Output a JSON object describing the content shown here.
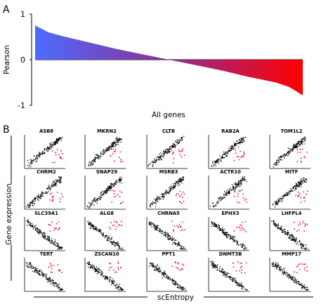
{
  "chart_data": [
    {
      "panel": "A",
      "type": "area",
      "ylabel": "Pearson",
      "xlabel": "All genes",
      "yticks": [
        "1",
        "0",
        "-1"
      ],
      "ylim": [
        -1,
        1
      ],
      "x": [
        0,
        0.05,
        0.1,
        0.2,
        0.3,
        0.4,
        0.5,
        0.6,
        0.7,
        0.8,
        0.9,
        0.95,
        1
      ],
      "values": [
        0.75,
        0.6,
        0.52,
        0.38,
        0.24,
        0.12,
        0.0,
        -0.12,
        -0.24,
        -0.38,
        -0.5,
        -0.6,
        -0.78
      ],
      "colors": {
        "start": "#4d6bff",
        "mid": "#8e2f94",
        "end": "#ff0000"
      },
      "grid": false
    },
    {
      "panel": "B",
      "type": "scatter",
      "xlabel": "scEntropy",
      "ylabel": "Gene expression",
      "colors": {
        "main": "#000000",
        "highlight": "#e8141a"
      },
      "genes": [
        "ASB8",
        "MKRN2",
        "CLTB",
        "RAB2A",
        "TOM1L2",
        "CHRM2",
        "SNAP29",
        "MSRB3",
        "ACTR10",
        "MITF",
        "SLC39A1",
        "ALG8",
        "CHRNA5",
        "EPHX3",
        "LHFPL4",
        "TERT",
        "ZSCAN10",
        "PPT1",
        "DNMT3B",
        "MMP17"
      ]
    }
  ]
}
